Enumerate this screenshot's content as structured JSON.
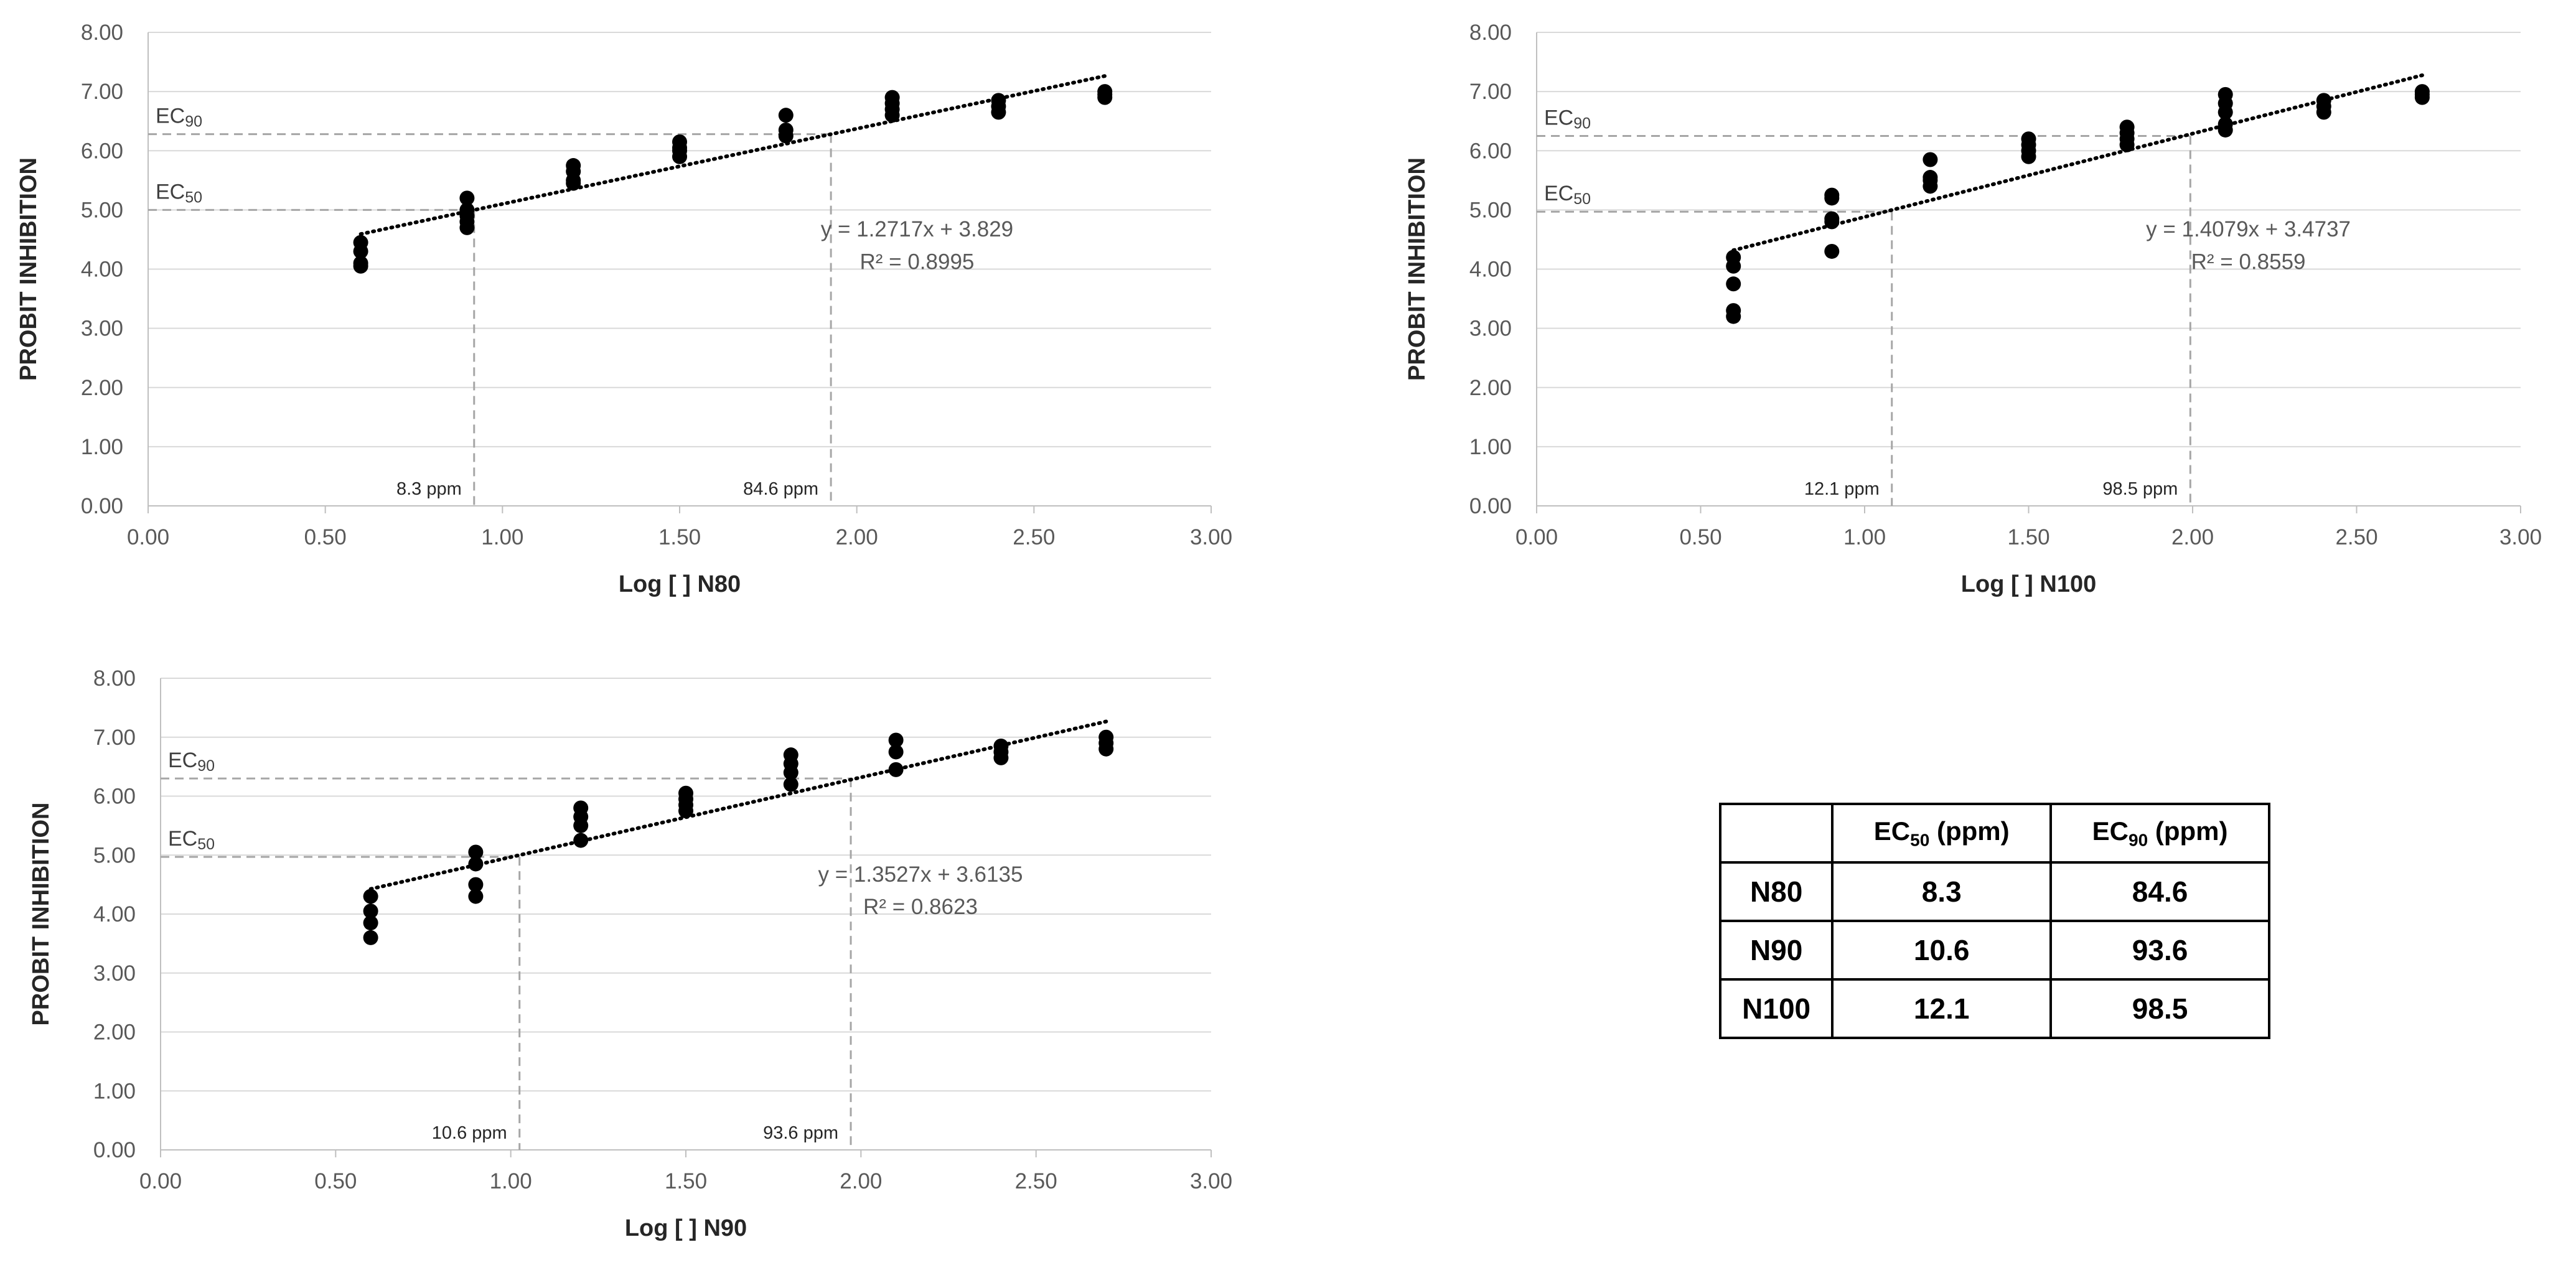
{
  "colors": {
    "grid": "#d9d9d9",
    "axis": "#bfbfbf",
    "points": "#000000",
    "trendline": "#000000",
    "guide": "#a6a6a6"
  },
  "chart_data": [
    {
      "id": "n80",
      "type": "scatter",
      "xlabel": "Log [  ] N80",
      "ylabel": "PROBIT INHIBITION",
      "xlim": [
        0,
        3
      ],
      "ylim": [
        0,
        8
      ],
      "x_ticks": [
        "0.00",
        "0.50",
        "1.00",
        "1.50",
        "2.00",
        "2.50",
        "3.00"
      ],
      "y_ticks": [
        "0.00",
        "1.00",
        "2.00",
        "3.00",
        "4.00",
        "5.00",
        "6.00",
        "7.00",
        "8.00"
      ],
      "points": [
        [
          0.6,
          4.05
        ],
        [
          0.6,
          4.1
        ],
        [
          0.6,
          4.3
        ],
        [
          0.6,
          4.45
        ],
        [
          0.9,
          4.7
        ],
        [
          0.9,
          4.8
        ],
        [
          0.9,
          4.9
        ],
        [
          0.9,
          5.0
        ],
        [
          0.9,
          5.2
        ],
        [
          1.2,
          5.45
        ],
        [
          1.2,
          5.5
        ],
        [
          1.2,
          5.65
        ],
        [
          1.2,
          5.75
        ],
        [
          1.5,
          5.9
        ],
        [
          1.5,
          6.0
        ],
        [
          1.5,
          6.05
        ],
        [
          1.5,
          6.15
        ],
        [
          1.8,
          6.25
        ],
        [
          1.8,
          6.35
        ],
        [
          1.8,
          6.6
        ],
        [
          2.1,
          6.6
        ],
        [
          2.1,
          6.7
        ],
        [
          2.1,
          6.8
        ],
        [
          2.1,
          6.9
        ],
        [
          2.4,
          6.65
        ],
        [
          2.4,
          6.75
        ],
        [
          2.4,
          6.85
        ],
        [
          2.7,
          6.9
        ],
        [
          2.7,
          6.95
        ],
        [
          2.7,
          7.0
        ]
      ],
      "trendline": {
        "slope": 1.2717,
        "intercept": 3.829,
        "x_range": [
          0.6,
          2.7
        ]
      },
      "equation": "y = 1.2717x + 3.829",
      "r_squared": "R² = 0.8995",
      "ec50_label": "EC",
      "ec50_sub": "50",
      "ec90_label": "EC",
      "ec90_sub": "90",
      "ec50_y": 5.0,
      "ec90_y": 6.28,
      "ec50_x": 0.92,
      "ec90_x": 1.927,
      "ec50_ppm": "8.3 ppm",
      "ec90_ppm": "84.6 ppm"
    },
    {
      "id": "n100",
      "type": "scatter",
      "xlabel": "Log [  ] N100",
      "ylabel": "PROBIT INHIBITION",
      "xlim": [
        0,
        3
      ],
      "ylim": [
        0,
        8
      ],
      "x_ticks": [
        "0.00",
        "0.50",
        "1.00",
        "1.50",
        "2.00",
        "2.50",
        "3.00"
      ],
      "y_ticks": [
        "0.00",
        "1.00",
        "2.00",
        "3.00",
        "4.00",
        "5.00",
        "6.00",
        "7.00",
        "8.00"
      ],
      "points": [
        [
          0.6,
          3.2
        ],
        [
          0.6,
          3.3
        ],
        [
          0.6,
          3.75
        ],
        [
          0.6,
          4.05
        ],
        [
          0.6,
          4.2
        ],
        [
          0.9,
          4.3
        ],
        [
          0.9,
          4.8
        ],
        [
          0.9,
          4.85
        ],
        [
          0.9,
          5.2
        ],
        [
          0.9,
          5.25
        ],
        [
          1.2,
          5.4
        ],
        [
          1.2,
          5.5
        ],
        [
          1.2,
          5.55
        ],
        [
          1.2,
          5.85
        ],
        [
          1.5,
          5.9
        ],
        [
          1.5,
          6.0
        ],
        [
          1.5,
          6.1
        ],
        [
          1.5,
          6.2
        ],
        [
          1.8,
          6.1
        ],
        [
          1.8,
          6.2
        ],
        [
          1.8,
          6.3
        ],
        [
          1.8,
          6.4
        ],
        [
          2.1,
          6.35
        ],
        [
          2.1,
          6.45
        ],
        [
          2.1,
          6.65
        ],
        [
          2.1,
          6.8
        ],
        [
          2.1,
          6.95
        ],
        [
          2.4,
          6.65
        ],
        [
          2.4,
          6.75
        ],
        [
          2.4,
          6.85
        ],
        [
          2.7,
          6.9
        ],
        [
          2.7,
          6.95
        ],
        [
          2.7,
          7.0
        ]
      ],
      "trendline": {
        "slope": 1.4079,
        "intercept": 3.4737,
        "x_range": [
          0.6,
          2.7
        ]
      },
      "equation": "y = 1.4079x + 3.4737",
      "r_squared": "R² = 0.8559",
      "ec50_label": "EC",
      "ec50_sub": "50",
      "ec90_label": "EC",
      "ec90_sub": "90",
      "ec50_y": 4.97,
      "ec90_y": 6.25,
      "ec50_x": 1.083,
      "ec90_x": 1.993,
      "ec50_ppm": "12.1 ppm",
      "ec90_ppm": "98.5 ppm"
    },
    {
      "id": "n90",
      "type": "scatter",
      "xlabel": "Log [  ] N90",
      "ylabel": "PROBIT INHIBITION",
      "xlim": [
        0,
        3
      ],
      "ylim": [
        0,
        8
      ],
      "x_ticks": [
        "0.00",
        "0.50",
        "1.00",
        "1.50",
        "2.00",
        "2.50",
        "3.00"
      ],
      "y_ticks": [
        "0.00",
        "1.00",
        "2.00",
        "3.00",
        "4.00",
        "5.00",
        "6.00",
        "7.00",
        "8.00"
      ],
      "points": [
        [
          0.6,
          3.6
        ],
        [
          0.6,
          3.85
        ],
        [
          0.6,
          4.05
        ],
        [
          0.6,
          4.3
        ],
        [
          0.9,
          4.3
        ],
        [
          0.9,
          4.5
        ],
        [
          0.9,
          4.85
        ],
        [
          0.9,
          5.05
        ],
        [
          1.2,
          5.25
        ],
        [
          1.2,
          5.5
        ],
        [
          1.2,
          5.65
        ],
        [
          1.2,
          5.8
        ],
        [
          1.5,
          5.75
        ],
        [
          1.5,
          5.85
        ],
        [
          1.5,
          5.95
        ],
        [
          1.5,
          6.05
        ],
        [
          1.8,
          6.2
        ],
        [
          1.8,
          6.4
        ],
        [
          1.8,
          6.55
        ],
        [
          1.8,
          6.7
        ],
        [
          2.1,
          6.45
        ],
        [
          2.1,
          6.75
        ],
        [
          2.1,
          6.95
        ],
        [
          2.4,
          6.65
        ],
        [
          2.4,
          6.75
        ],
        [
          2.4,
          6.85
        ],
        [
          2.7,
          6.8
        ],
        [
          2.7,
          6.9
        ],
        [
          2.7,
          7.0
        ]
      ],
      "trendline": {
        "slope": 1.3527,
        "intercept": 3.6135,
        "x_range": [
          0.6,
          2.7
        ]
      },
      "equation": "y = 1.3527x + 3.6135",
      "r_squared": "R² = 0.8623",
      "ec50_label": "EC",
      "ec50_sub": "50",
      "ec90_label": "EC",
      "ec90_sub": "90",
      "ec50_y": 4.97,
      "ec90_y": 6.3,
      "ec50_x": 1.025,
      "ec90_x": 1.971,
      "ec50_ppm": "10.6 ppm",
      "ec90_ppm": "93.6 ppm"
    }
  ],
  "summary_table": {
    "header": {
      "blank": "",
      "ec50_prefix": "EC",
      "ec50_sub": "50",
      "ec50_suffix": " (ppm)",
      "ec90_prefix": "EC",
      "ec90_sub": "90",
      "ec90_suffix": " (ppm)"
    },
    "rows": [
      {
        "label": "N80",
        "ec50": "8.3",
        "ec90": "84.6"
      },
      {
        "label": "N90",
        "ec50": "10.6",
        "ec90": "93.6"
      },
      {
        "label": "N100",
        "ec50": "12.1",
        "ec90": "98.5"
      }
    ]
  }
}
